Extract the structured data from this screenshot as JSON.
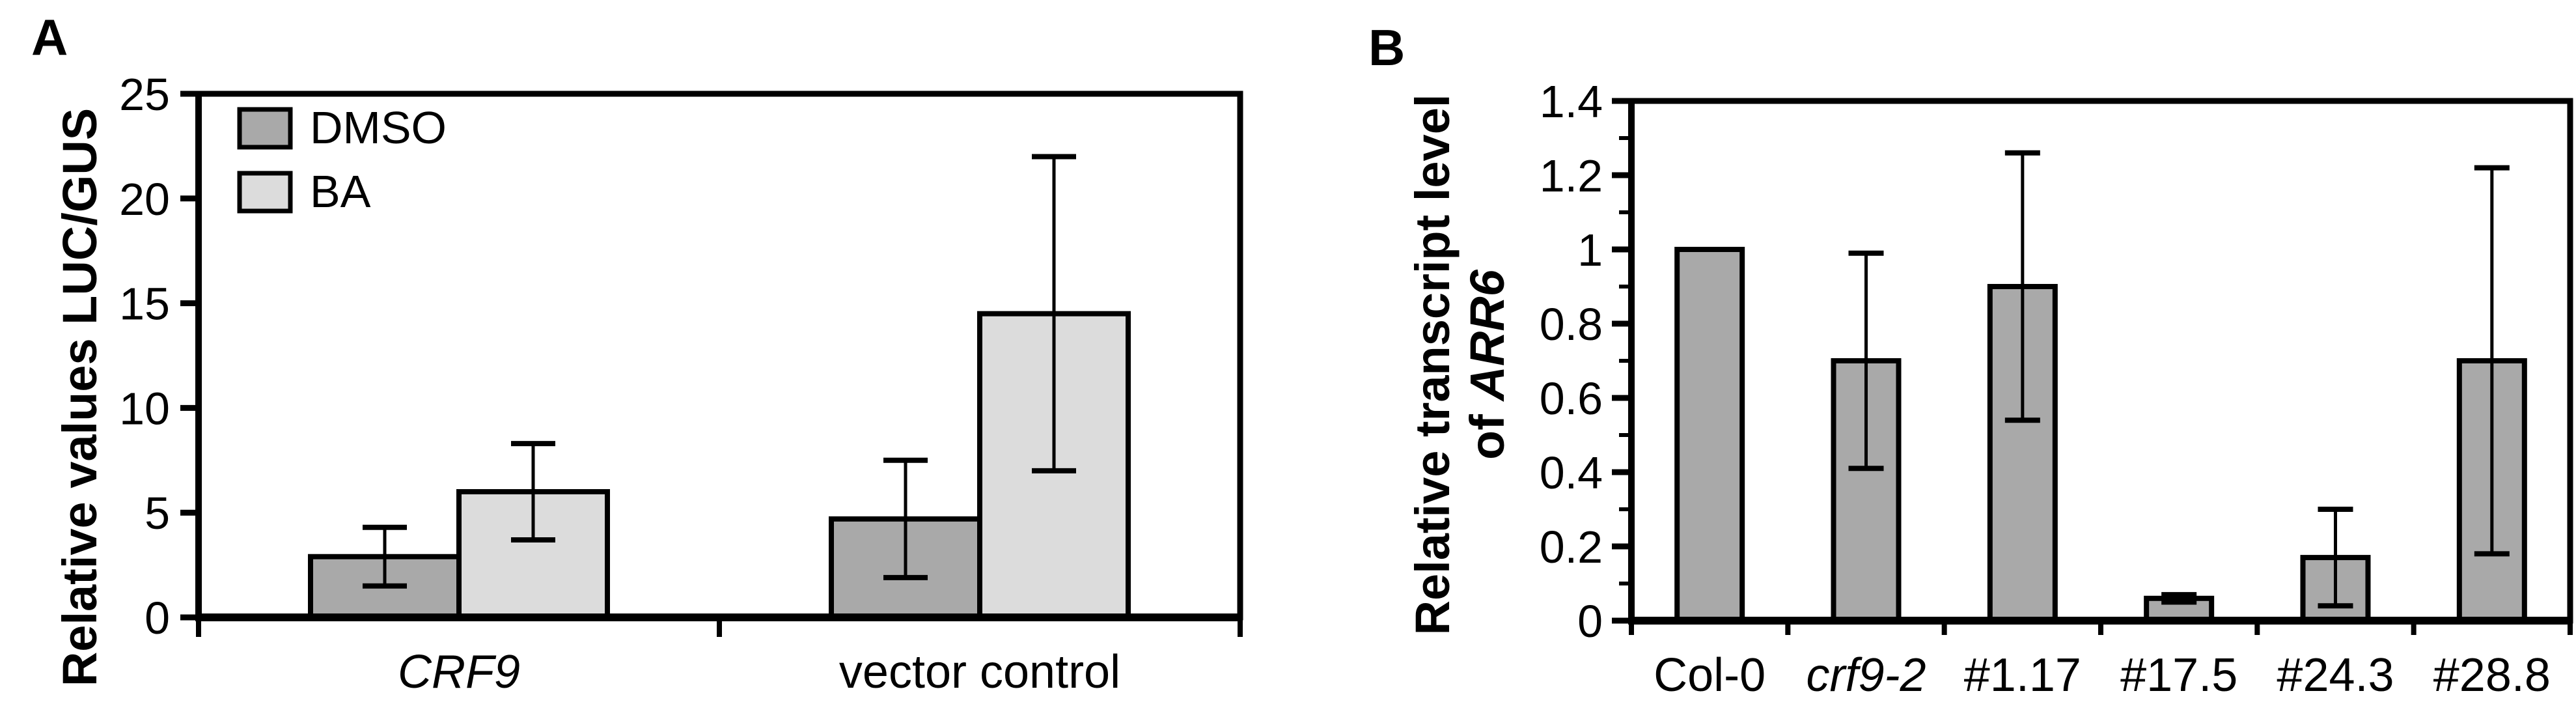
{
  "figure": {
    "panels": {
      "a": {
        "letter": "A",
        "y_axis_title": "Relative values LUC/GUS",
        "x_labels": [
          "CRF9",
          "vector control"
        ],
        "legend_labels": [
          "DMSO",
          "BA"
        ]
      },
      "b": {
        "letter": "B",
        "y_axis_title_line1": "Relative transcript level",
        "y_axis_title_line2_prefix": "of ",
        "y_axis_title_line2_gene": "ARR6",
        "x_labels": [
          "Col-0",
          "crf9-2",
          "#1.17",
          "#17.5",
          "#24.3",
          "#28.8"
        ]
      }
    },
    "colors": {
      "dmso_bar": "#a9a9a9",
      "ba_bar": "#dcdcdc",
      "panel_b_bar": "#a9a9a9",
      "axis": "#000000",
      "background": "#ffffff"
    }
  },
  "chart_data": [
    {
      "type": "bar",
      "panel": "A",
      "title": "",
      "categories": [
        "CRF9",
        "vector control"
      ],
      "category_styles": [
        "italic",
        "normal"
      ],
      "series": [
        {
          "name": "DMSO",
          "color": "#a9a9a9",
          "values": [
            2.9,
            4.7
          ],
          "errors": [
            1.4,
            2.8
          ]
        },
        {
          "name": "BA",
          "color": "#dcdcdc",
          "values": [
            6.0,
            14.5
          ],
          "errors": [
            2.3,
            7.5
          ]
        }
      ],
      "xlabel": "",
      "ylabel": "Relative values LUC/GUS",
      "ylim": [
        0,
        25
      ],
      "ytick_step": 5,
      "ytick_labels": [
        "0",
        "5",
        "10",
        "15",
        "20",
        "25"
      ],
      "legend_position": "top-left",
      "grid": false,
      "error_bars": true
    },
    {
      "type": "bar",
      "panel": "B",
      "title": "",
      "categories": [
        "Col-0",
        "crf9-2",
        "#1.17",
        "#17.5",
        "#24.3",
        "#28.8"
      ],
      "category_styles": [
        "normal",
        "italic",
        "normal",
        "normal",
        "normal",
        "normal"
      ],
      "series": [
        {
          "name": "",
          "color": "#a9a9a9",
          "values": [
            1.0,
            0.7,
            0.9,
            0.06,
            0.17,
            0.7
          ],
          "errors": [
            0,
            0.29,
            0.36,
            0.01,
            0.13,
            0.52
          ]
        }
      ],
      "xlabel": "",
      "ylabel": "Relative transcript level of ARR6",
      "ylim": [
        0,
        1.4
      ],
      "ytick_step": 0.2,
      "minor_tick_step": 0.1,
      "ytick_labels": [
        "0",
        "0.2",
        "0.4",
        "0.6",
        "0.8",
        "1",
        "1.2",
        "1.4"
      ],
      "legend_position": "none",
      "grid": false,
      "error_bars": true
    }
  ]
}
